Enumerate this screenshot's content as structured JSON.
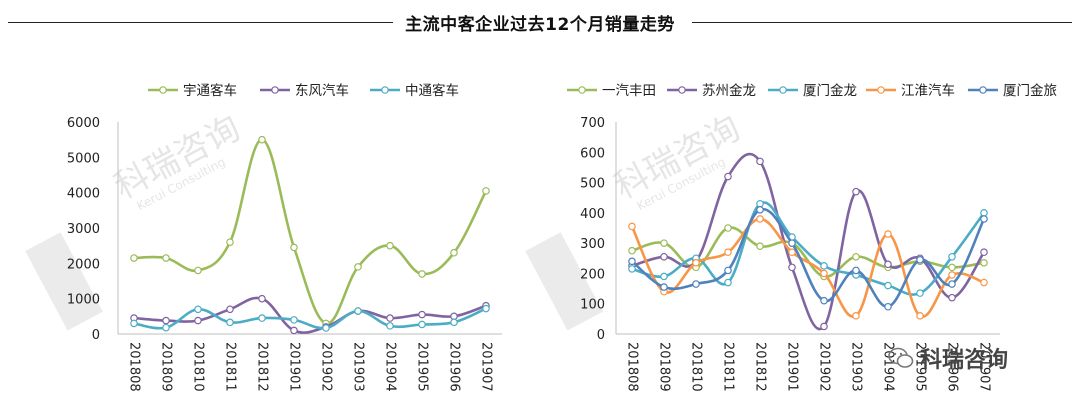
{
  "title": "主流中客企业过去12个月销量走势",
  "brand": {
    "name": "科瑞咨询",
    "watermark": "科瑞咨询",
    "watermark_sub": "Kerui Consulting"
  },
  "colors": {
    "green": "#9BBB59",
    "purple": "#8064A2",
    "cyan": "#4BACC6",
    "orange": "#F79646",
    "blue": "#4F81BD"
  },
  "chart_data": [
    {
      "type": "line",
      "x": [
        "201808",
        "201809",
        "201810",
        "201811",
        "201812",
        "201901",
        "201902",
        "201903",
        "201904",
        "201905",
        "201906",
        "201907"
      ],
      "ylim": [
        0,
        6000
      ],
      "yticks": [
        0,
        1000,
        2000,
        3000,
        4000,
        5000,
        6000
      ],
      "grid": false,
      "legend": "top",
      "series": [
        {
          "name": "宇通客车",
          "color": "#9BBB59",
          "values": [
            2150,
            2150,
            1800,
            2600,
            5500,
            2450,
            300,
            1900,
            2500,
            1700,
            2300,
            4050
          ]
        },
        {
          "name": "东风汽车",
          "color": "#8064A2",
          "values": [
            450,
            380,
            380,
            700,
            1000,
            100,
            200,
            650,
            450,
            550,
            500,
            800
          ]
        },
        {
          "name": "中通客车",
          "color": "#4BACC6",
          "values": [
            300,
            180,
            700,
            330,
            450,
            400,
            170,
            650,
            230,
            270,
            330,
            720
          ]
        }
      ]
    },
    {
      "type": "line",
      "x": [
        "201808",
        "201809",
        "201810",
        "201811",
        "201812",
        "201901",
        "201902",
        "201903",
        "201904",
        "201905",
        "201906",
        "201907"
      ],
      "ylim": [
        0,
        700
      ],
      "yticks": [
        0,
        100,
        200,
        300,
        400,
        500,
        600,
        700
      ],
      "grid": false,
      "legend": "top",
      "series": [
        {
          "name": "一汽丰田",
          "color": "#9BBB59",
          "values": [
            275,
            300,
            220,
            350,
            290,
            300,
            190,
            255,
            220,
            240,
            220,
            235
          ]
        },
        {
          "name": "苏州金龙",
          "color": "#8064A2",
          "values": [
            225,
            255,
            240,
            520,
            570,
            220,
            25,
            470,
            230,
            250,
            120,
            270
          ]
        },
        {
          "name": "厦门金龙",
          "color": "#4BACC6",
          "values": [
            215,
            190,
            250,
            170,
            430,
            320,
            225,
            195,
            160,
            135,
            255,
            400
          ]
        },
        {
          "name": "江淮汽车",
          "color": "#F79646",
          "values": [
            355,
            140,
            235,
            270,
            380,
            270,
            200,
            60,
            330,
            60,
            195,
            170
          ]
        },
        {
          "name": "厦门金旅",
          "color": "#4F81BD",
          "values": [
            240,
            155,
            165,
            210,
            410,
            300,
            110,
            210,
            90,
            245,
            165,
            380
          ]
        }
      ]
    }
  ]
}
